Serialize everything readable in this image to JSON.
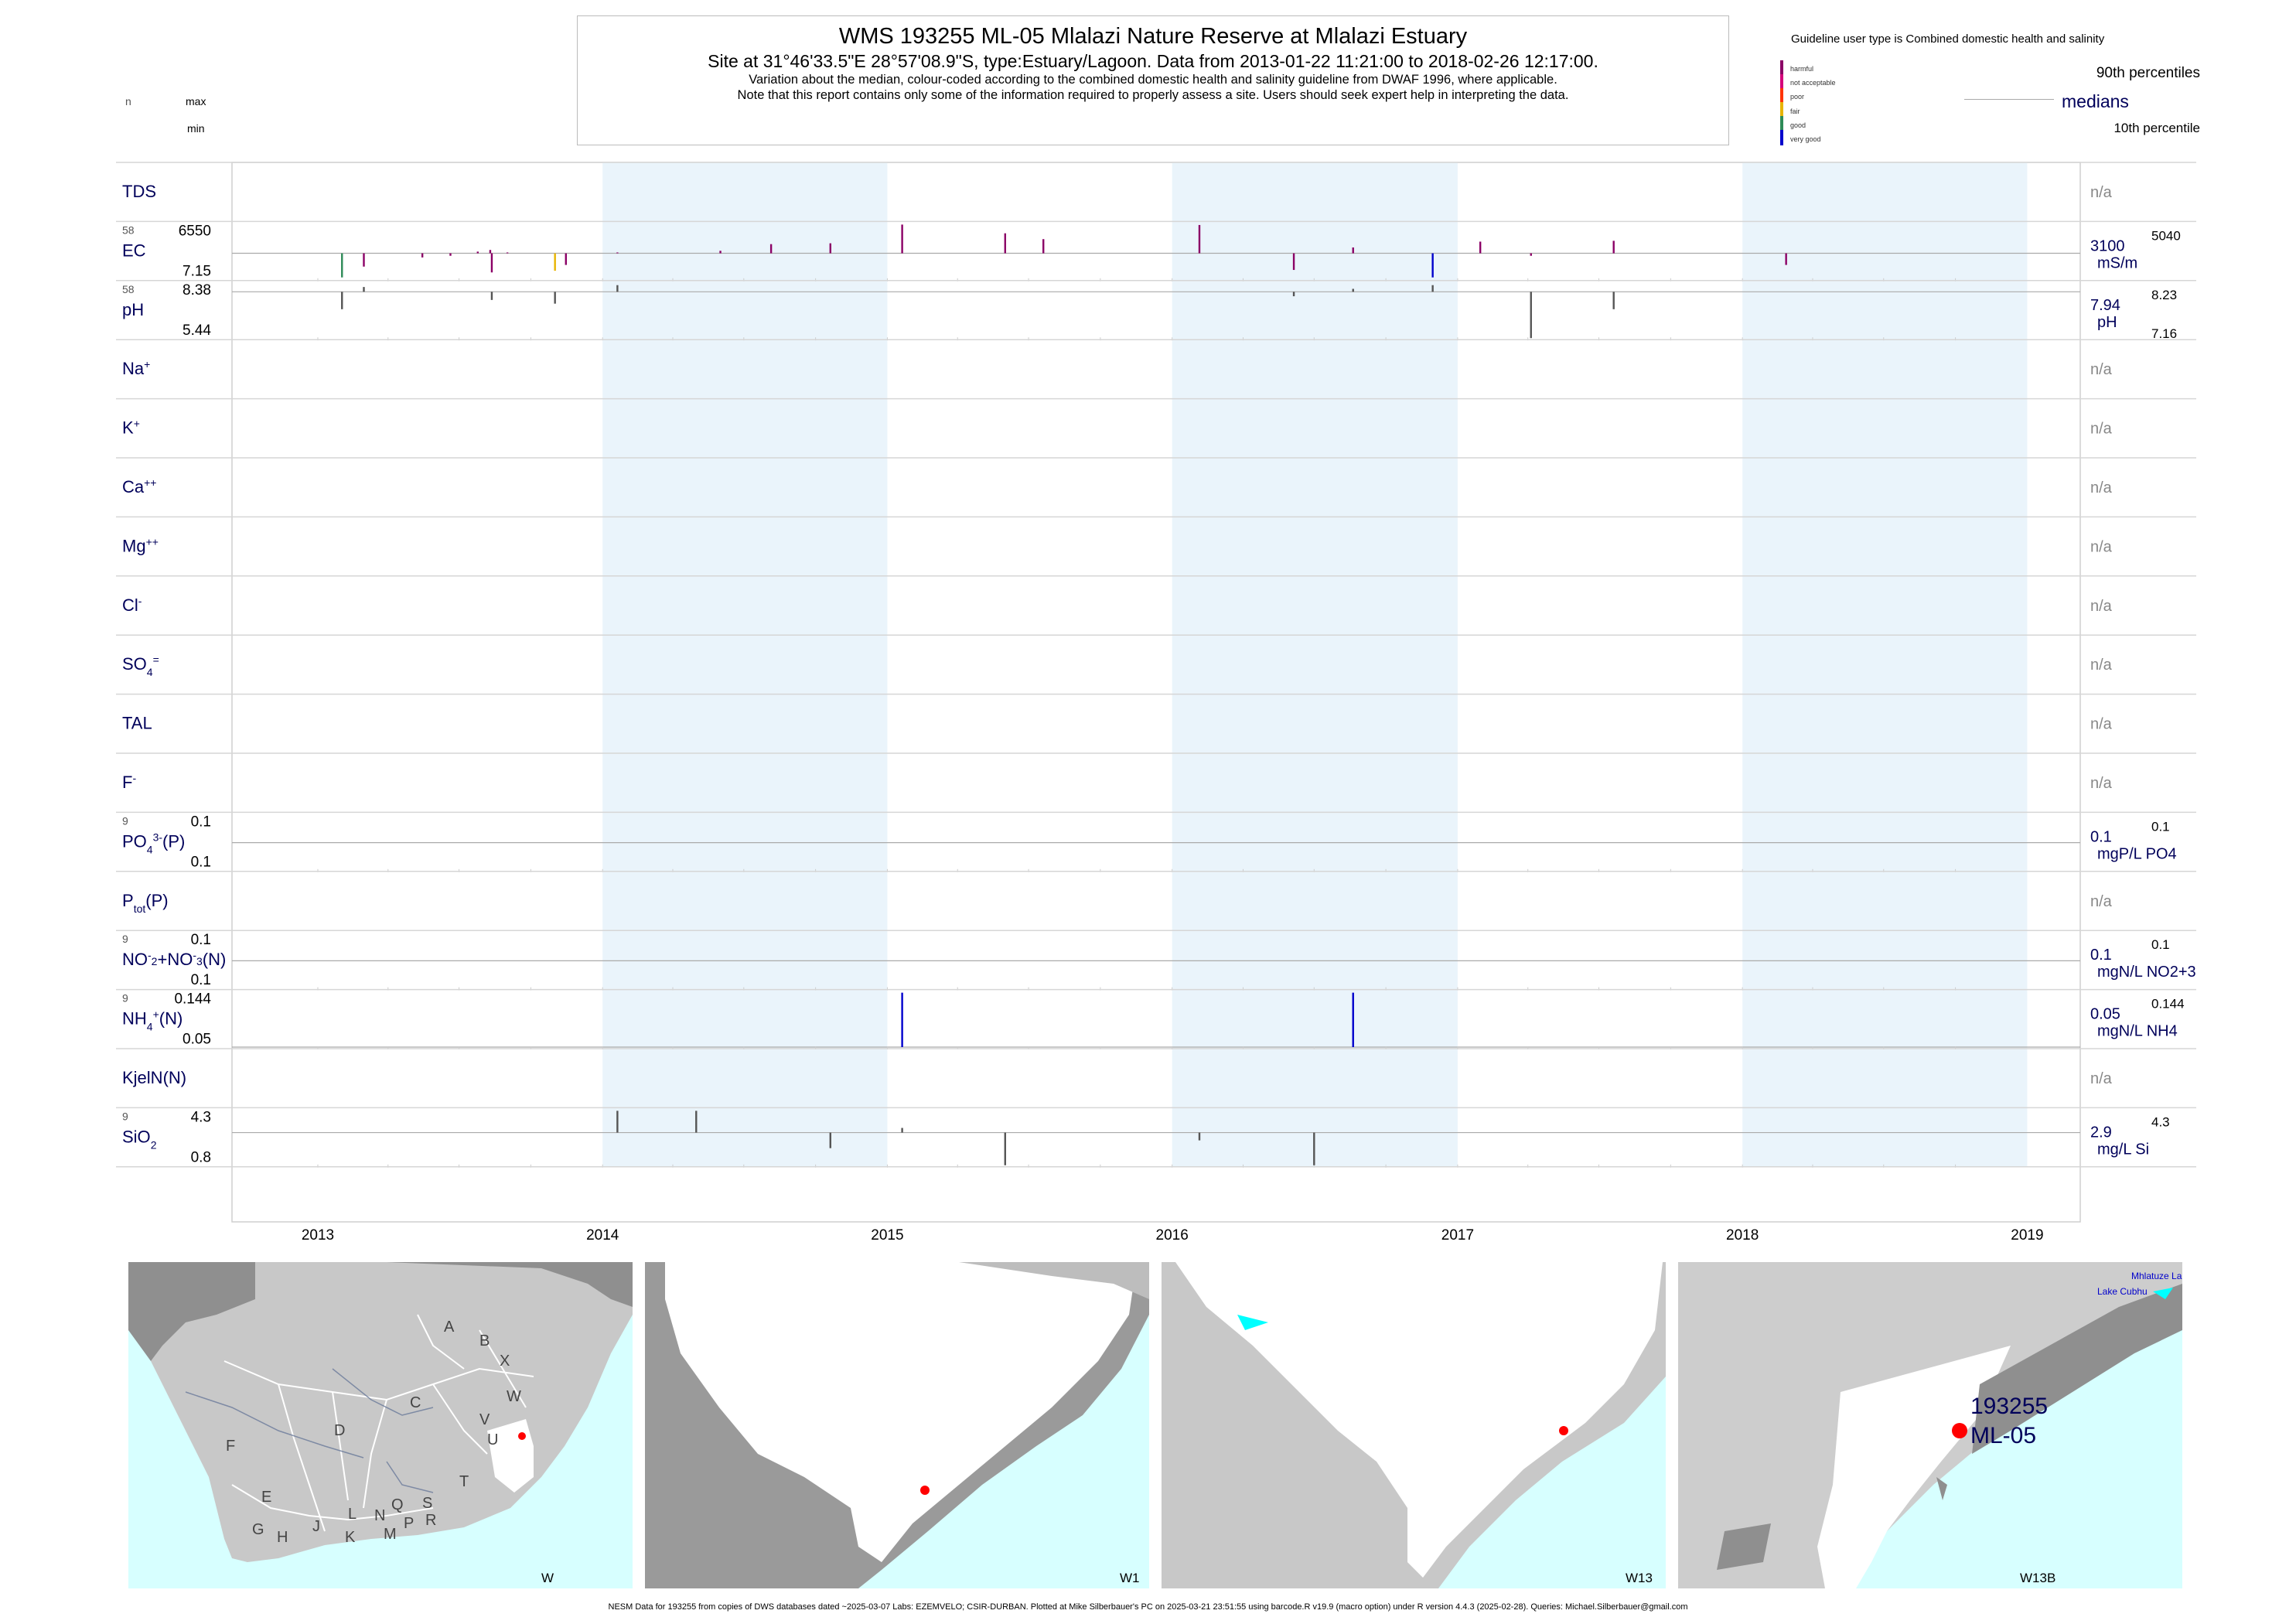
{
  "header": {
    "title": "WMS 193255 ML-05 Mlalazi Nature Reserve at Mlalazi Estuary",
    "subtitle": "Site at 31°46'33.5\"E 28°57'08.9\"S, type:Estuary/Lagoon.  Data from 2013-01-22 11:21:00 to 2018-02-26 12:17:00.",
    "note1": "Variation about the median,  colour-coded according to the combined domestic health and salinity guideline from DWAF 1996, where applicable.",
    "note2": "Note that this report contains only some of the information required to properly assess a site. Users should seek expert help in interpreting the data."
  },
  "left_key": {
    "n": "n",
    "max": "max",
    "min": "min"
  },
  "legend": {
    "title": "Guideline user type is Combined domestic health and salinity",
    "classes": [
      {
        "label": "harmful",
        "color": "#8b0066"
      },
      {
        "label": "not acceptable",
        "color": "#d4007a"
      },
      {
        "label": "poor",
        "color": "#ff3300"
      },
      {
        "label": "fair",
        "color": "#e8b400"
      },
      {
        "label": "good",
        "color": "#2e8b57"
      },
      {
        "label": "very good",
        "color": "#0000cc"
      }
    ],
    "p90": "90th percentiles",
    "medians": "medians",
    "p10": "10th percentile"
  },
  "chart_data": {
    "type": "bar",
    "title": "WMS 193255 ML-05 Mlalazi Nature Reserve at Mlalazi Estuary",
    "x_ticks": [
      "2013",
      "2014",
      "2015",
      "2016",
      "2017",
      "2018",
      "2019"
    ],
    "x_range": [
      "2012-09-13",
      "2019-03-10"
    ],
    "shaded_years": [
      "2014",
      "2016",
      "2018"
    ],
    "rows": [
      {
        "label": "TDS",
        "na": "n/a"
      },
      {
        "label": "EC",
        "n": "58",
        "max": "6550",
        "min": "7.15",
        "median": "3100",
        "unit": "mS/m",
        "p90": "5040",
        "p10": "",
        "points": [
          {
            "date": "2013-02-01",
            "value": 200,
            "class": "good"
          },
          {
            "date": "2013-03-01",
            "value": 1500,
            "class": "harmful"
          },
          {
            "date": "2013-05-15",
            "value": 2600,
            "class": "harmful"
          },
          {
            "date": "2013-06-20",
            "value": 2800,
            "class": "harmful"
          },
          {
            "date": "2013-07-25",
            "value": 3300,
            "class": "harmful"
          },
          {
            "date": "2013-08-10",
            "value": 3500,
            "class": "harmful"
          },
          {
            "date": "2013-08-12",
            "value": 800,
            "class": "harmful"
          },
          {
            "date": "2013-09-01",
            "value": 3200,
            "class": "harmful"
          },
          {
            "date": "2013-11-01",
            "value": 1000,
            "class": "fair"
          },
          {
            "date": "2013-11-15",
            "value": 1700,
            "class": "harmful"
          },
          {
            "date": "2014-01-20",
            "value": 3200,
            "class": "harmful"
          },
          {
            "date": "2014-06-01",
            "value": 3400,
            "class": "harmful"
          },
          {
            "date": "2014-08-05",
            "value": 4200,
            "class": "harmful"
          },
          {
            "date": "2014-10-20",
            "value": 4300,
            "class": "harmful"
          },
          {
            "date": "2015-01-20",
            "value": 6550,
            "class": "harmful"
          },
          {
            "date": "2015-06-01",
            "value": 5500,
            "class": "harmful"
          },
          {
            "date": "2015-07-20",
            "value": 4800,
            "class": "harmful"
          },
          {
            "date": "2016-02-05",
            "value": 6500,
            "class": "harmful"
          },
          {
            "date": "2016-06-05",
            "value": 1100,
            "class": "harmful"
          },
          {
            "date": "2016-08-20",
            "value": 3800,
            "class": "harmful"
          },
          {
            "date": "2016-11-30",
            "value": 200,
            "class": "very good"
          },
          {
            "date": "2017-01-30",
            "value": 4500,
            "class": "harmful"
          },
          {
            "date": "2017-04-05",
            "value": 2800,
            "class": "harmful"
          },
          {
            "date": "2017-07-20",
            "value": 4600,
            "class": "harmful"
          },
          {
            "date": "2018-02-26",
            "value": 1700,
            "class": "harmful"
          }
        ]
      },
      {
        "label": "pH",
        "n": "58",
        "max": "8.38",
        "min": "5.44",
        "median": "7.94",
        "unit": "pH",
        "p90": "8.23",
        "p10": "7.16",
        "points": [
          {
            "date": "2013-02-01",
            "value": 7.0
          },
          {
            "date": "2013-03-01",
            "value": 8.2
          },
          {
            "date": "2013-08-12",
            "value": 7.5
          },
          {
            "date": "2013-11-01",
            "value": 7.3
          },
          {
            "date": "2014-01-20",
            "value": 8.3
          },
          {
            "date": "2016-06-05",
            "value": 7.7
          },
          {
            "date": "2016-08-20",
            "value": 8.1
          },
          {
            "date": "2016-11-30",
            "value": 8.3
          },
          {
            "date": "2017-04-05",
            "value": 5.44
          },
          {
            "date": "2017-07-20",
            "value": 7.0
          }
        ]
      },
      {
        "label": "Na+",
        "na": "n/a"
      },
      {
        "label": "K+",
        "na": "n/a"
      },
      {
        "label": "Ca++",
        "na": "n/a"
      },
      {
        "label": "Mg++",
        "na": "n/a"
      },
      {
        "label": "Cl-",
        "na": "n/a"
      },
      {
        "label": "SO4=",
        "na": "n/a"
      },
      {
        "label": "TAL",
        "na": "n/a"
      },
      {
        "label": "F-",
        "na": "n/a"
      },
      {
        "label": "PO43-(P)",
        "n": "9",
        "max": "0.1",
        "min": "0.1",
        "median": "0.1",
        "unit": "mgP/L PO4",
        "p90": "0.1",
        "p10": "",
        "points": []
      },
      {
        "label": "Ptot(P)",
        "na": "n/a"
      },
      {
        "label": "NO2-+NO3-(N)",
        "n": "9",
        "max": "0.1",
        "min": "0.1",
        "median": "0.1",
        "unit": "mgN/L NO2+3",
        "p90": "0.1",
        "p10": "",
        "points": []
      },
      {
        "label": "NH4+(N)",
        "n": "9",
        "max": "0.144",
        "min": "0.05",
        "median": "0.05",
        "unit": "mgN/L NH4",
        "p90": "0.144",
        "p10": "",
        "points": [
          {
            "date": "2015-01-20",
            "value": 0.144,
            "class": "very good"
          },
          {
            "date": "2016-08-20",
            "value": 0.144,
            "class": "very good"
          }
        ]
      },
      {
        "label": "KjelN(N)",
        "na": "n/a"
      },
      {
        "label": "SiO2",
        "n": "9",
        "max": "4.3",
        "min": "0.8",
        "median": "2.9",
        "unit": "mg/L Si",
        "p90": "4.3",
        "p10": "",
        "points": [
          {
            "date": "2014-01-20",
            "value": 4.3
          },
          {
            "date": "2014-05-01",
            "value": 4.3
          },
          {
            "date": "2014-10-20",
            "value": 1.9
          },
          {
            "date": "2015-01-20",
            "value": 3.2
          },
          {
            "date": "2015-06-01",
            "value": 0.8
          },
          {
            "date": "2016-02-05",
            "value": 2.4
          },
          {
            "date": "2016-07-01",
            "value": 0.8
          }
        ]
      }
    ]
  },
  "maps": [
    {
      "label": "W",
      "regions": [
        "A",
        "B",
        "X",
        "C",
        "W",
        "V",
        "D",
        "U",
        "F",
        "T",
        "E",
        "Q",
        "S",
        "L",
        "N",
        "R",
        "G",
        "J",
        "P",
        "H",
        "K",
        "M"
      ]
    },
    {
      "label": "W1"
    },
    {
      "label": "W13"
    },
    {
      "label": "W13B",
      "site": "193255",
      "site_code": "ML-05",
      "place1": "Mhlatuze La",
      "place2": "Lake Cubhu"
    }
  ],
  "footer": "NESM Data for 193255 from copies of DWS databases dated ~2025-03-07 Labs: EZEMVELO; CSIR-DURBAN. Plotted at Mike Silberbauer's PC on 2025-03-21 23:51:55 using barcode.R v19.9 (macro option) under R version 4.4.3 (2025-02-28). Queries: Michael.Silberbauer@gmail.com"
}
